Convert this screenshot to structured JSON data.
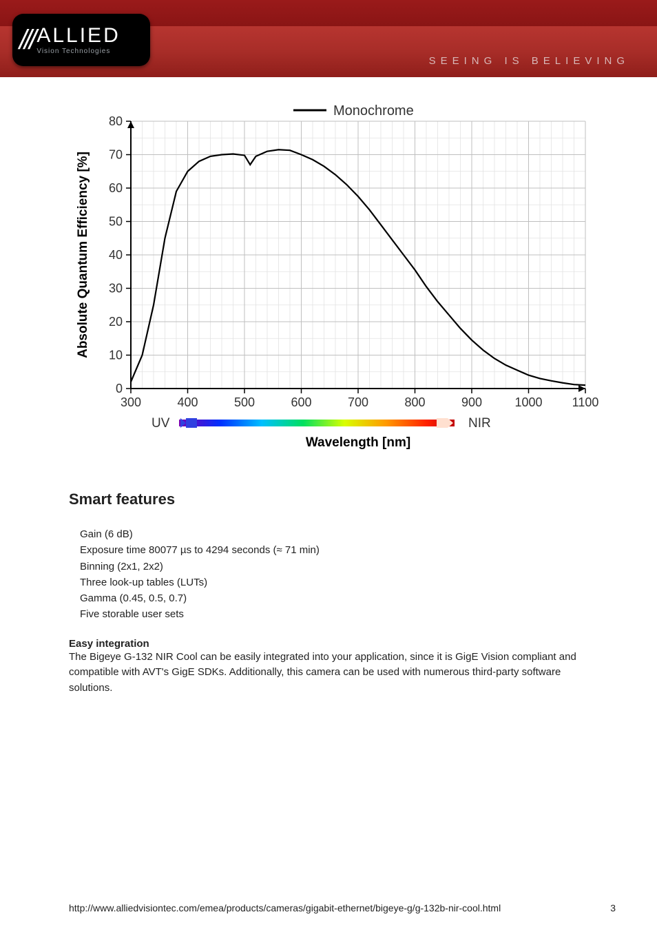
{
  "header": {
    "logo_main": "ALLIED",
    "logo_sub": "Vision Technologies",
    "tagline": "SEEING IS BELIEVING"
  },
  "chart": {
    "type": "line",
    "legend_label": "Monochrome",
    "x_label": "Wavelength [nm]",
    "y_label": "Absolute Quantum Efficiency [%]",
    "x_left_label": "UV",
    "x_right_label": "NIR",
    "xlim": [
      300,
      1100
    ],
    "ylim": [
      0,
      80
    ],
    "xtick_step": 100,
    "ytick_step": 10,
    "x_minor_per_major": 5,
    "y_minor_per_major": 2,
    "line_color": "#000000",
    "line_width": 2.2,
    "axis_color": "#000000",
    "grid_major_color": "#bfbfbf",
    "grid_minor_color": "#e2e2e2",
    "background_color": "#ffffff",
    "title_fontsize": 20,
    "label_fontsize": 19,
    "tick_fontsize": 18,
    "data_points": [
      [
        300,
        2
      ],
      [
        320,
        10
      ],
      [
        340,
        25
      ],
      [
        360,
        45
      ],
      [
        380,
        59
      ],
      [
        400,
        65
      ],
      [
        420,
        68
      ],
      [
        440,
        69.5
      ],
      [
        460,
        70
      ],
      [
        480,
        70.2
      ],
      [
        500,
        69.8
      ],
      [
        510,
        67
      ],
      [
        520,
        69.5
      ],
      [
        540,
        71
      ],
      [
        560,
        71.5
      ],
      [
        580,
        71.3
      ],
      [
        600,
        70
      ],
      [
        620,
        68.5
      ],
      [
        640,
        66.5
      ],
      [
        660,
        64
      ],
      [
        680,
        61
      ],
      [
        700,
        57.5
      ],
      [
        720,
        53.5
      ],
      [
        740,
        49
      ],
      [
        760,
        44.5
      ],
      [
        780,
        40
      ],
      [
        800,
        35.5
      ],
      [
        820,
        30.5
      ],
      [
        840,
        26
      ],
      [
        860,
        22
      ],
      [
        880,
        18
      ],
      [
        900,
        14.5
      ],
      [
        920,
        11.5
      ],
      [
        940,
        9
      ],
      [
        960,
        7
      ],
      [
        980,
        5.5
      ],
      [
        1000,
        4
      ],
      [
        1020,
        3
      ],
      [
        1040,
        2.3
      ],
      [
        1060,
        1.7
      ],
      [
        1080,
        1.2
      ],
      [
        1100,
        1
      ]
    ],
    "spectrum_gradient": [
      [
        "0.00",
        "#7a00b3"
      ],
      [
        "0.15",
        "#0030ff"
      ],
      [
        "0.30",
        "#00bfff"
      ],
      [
        "0.45",
        "#00e060"
      ],
      [
        "0.60",
        "#d8ff00"
      ],
      [
        "0.75",
        "#ff9a00"
      ],
      [
        "0.90",
        "#ff2000"
      ],
      [
        "1.00",
        "#c00000"
      ]
    ]
  },
  "smart_features": {
    "title": "Smart features",
    "items": [
      "Gain (6 dB)",
      "Exposure time 80077 µs to 4294 seconds (≈ 71 min)",
      "Binning (2x1, 2x2)",
      "Three look-up tables (LUTs)",
      "Gamma (0.45, 0.5, 0.7)",
      "Five storable user sets"
    ],
    "easy_title": "Easy integration",
    "easy_body": "The Bigeye G-132 NIR Cool can be easily integrated into your application, since it is GigE Vision compliant and compatible with AVT's GigE SDKs. Additionally, this camera can be used with numerous third-party software solutions."
  },
  "footer": {
    "url": "http://www.alliedvisiontec.com/emea/products/cameras/gigabit-ethernet/bigeye-g/g-132b-nir-cool.html",
    "page": "3"
  }
}
